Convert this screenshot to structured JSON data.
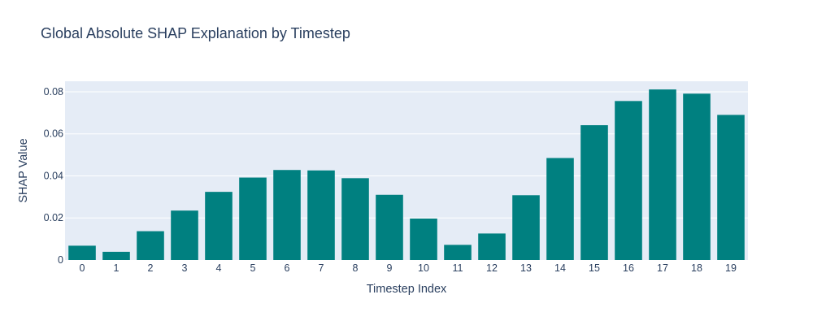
{
  "chart_data": {
    "type": "bar",
    "title": "Global Absolute SHAP Explanation by Timestep",
    "xlabel": "Timestep Index",
    "ylabel": "SHAP Value",
    "categories": [
      "0",
      "1",
      "2",
      "3",
      "4",
      "5",
      "6",
      "7",
      "8",
      "9",
      "10",
      "11",
      "12",
      "13",
      "14",
      "15",
      "16",
      "17",
      "18",
      "19"
    ],
    "values": [
      0.0068,
      0.0039,
      0.0137,
      0.0235,
      0.0324,
      0.0392,
      0.0428,
      0.0426,
      0.0389,
      0.031,
      0.0197,
      0.0072,
      0.0126,
      0.0308,
      0.0485,
      0.0641,
      0.0756,
      0.0811,
      0.0791,
      0.069
    ],
    "ylim": [
      0,
      0.085
    ],
    "yticks": [
      {
        "value": 0,
        "label": "0"
      },
      {
        "value": 0.02,
        "label": "0.02"
      },
      {
        "value": 0.04,
        "label": "0.04"
      },
      {
        "value": 0.06,
        "label": "0.06"
      },
      {
        "value": 0.08,
        "label": "0.08"
      }
    ],
    "grid": true,
    "colors": {
      "bar": "#008080",
      "plot_background": "#e5ecf6",
      "grid": "#ffffff",
      "text": "#2a3f5f"
    }
  }
}
